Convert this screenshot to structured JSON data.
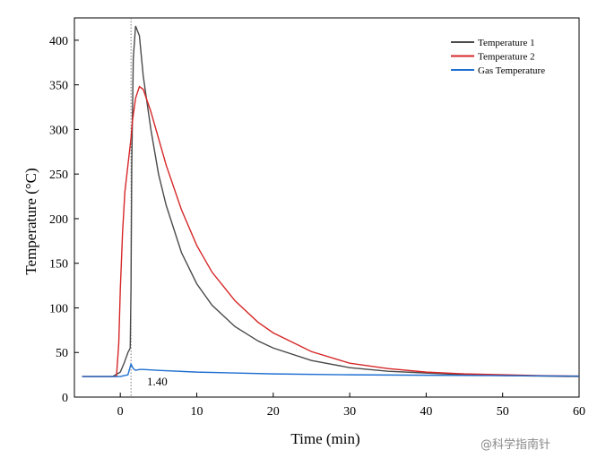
{
  "chart_data": {
    "type": "line",
    "title": "",
    "xlabel": "Time (min)",
    "ylabel": "Temperature (°C)",
    "xlim": [
      -6,
      60
    ],
    "ylim": [
      0,
      425
    ],
    "xticks": [
      0,
      10,
      20,
      30,
      40,
      50,
      60
    ],
    "yticks": [
      0,
      50,
      100,
      150,
      200,
      250,
      300,
      350,
      400
    ],
    "grid": false,
    "legend_position": "top-right",
    "annotation": {
      "text": "1.40",
      "x": 1.4
    },
    "series": [
      {
        "name": "Temperature 1",
        "color": "#4a4a4a",
        "x": [
          -5,
          -1,
          0,
          0.5,
          1.0,
          1.3,
          1.4,
          1.5,
          1.7,
          2.0,
          2.5,
          3.0,
          4,
          5,
          6,
          8,
          10,
          12,
          15,
          18,
          20,
          25,
          30,
          35,
          40,
          45,
          50,
          55,
          60
        ],
        "y": [
          23,
          23,
          28,
          38,
          50,
          55,
          120,
          260,
          380,
          416,
          405,
          360,
          300,
          250,
          215,
          162,
          127,
          103,
          79,
          63,
          55,
          41,
          33,
          29,
          27,
          25,
          24,
          23.5,
          23
        ]
      },
      {
        "name": "Temperature 2",
        "color": "#d62728",
        "x": [
          -5,
          -0.5,
          -0.2,
          0,
          0.3,
          0.6,
          1.0,
          1.4,
          1.6,
          2.0,
          2.5,
          3.0,
          4,
          5,
          6,
          8,
          10,
          12,
          15,
          18,
          20,
          25,
          30,
          35,
          40,
          45,
          50,
          55,
          60
        ],
        "y": [
          23,
          23,
          60,
          120,
          185,
          230,
          260,
          290,
          310,
          335,
          348,
          345,
          320,
          290,
          260,
          210,
          170,
          140,
          108,
          84,
          72,
          51,
          38,
          32,
          28,
          26,
          25,
          24,
          23.5
        ]
      },
      {
        "name": "Gas Temperature",
        "color": "#1f6fd1",
        "x": [
          -5,
          -1,
          0,
          0.5,
          1.0,
          1.4,
          1.7,
          2.0,
          2.5,
          3,
          5,
          10,
          20,
          30,
          40,
          50,
          60
        ],
        "y": [
          23,
          23,
          23,
          24,
          25,
          37,
          32,
          30,
          31,
          31,
          30,
          28,
          26,
          25,
          24.5,
          24,
          23.5
        ]
      }
    ]
  },
  "watermark": {
    "text": "@科学指南针"
  }
}
